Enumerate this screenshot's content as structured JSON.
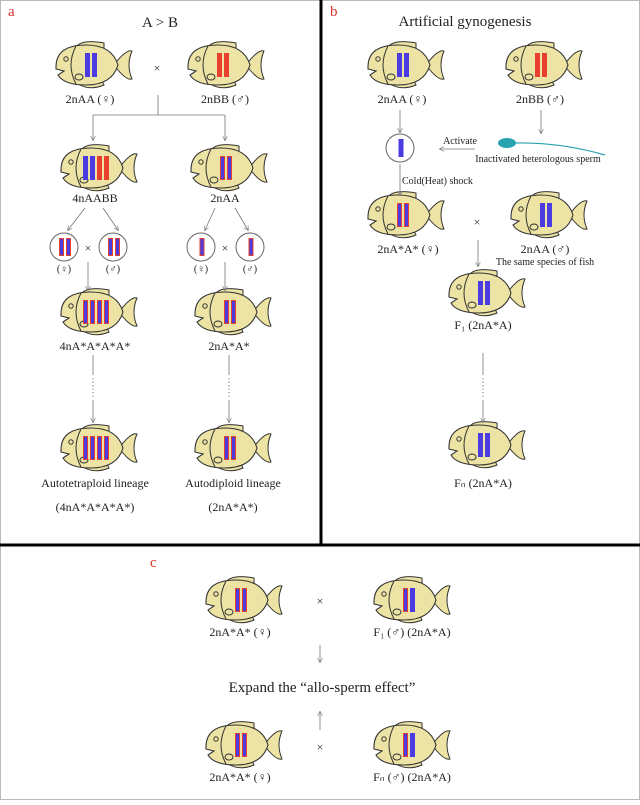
{
  "colors": {
    "chromosome_a": "#4a3ce0",
    "chromosome_b": "#e8402c",
    "fish_body": "#ece3a4",
    "panel_letter": "#e0302a"
  },
  "panel_a": {
    "letter": "a",
    "title": "A > B",
    "parent_female": "2nAA (♀)",
    "parent_male": "2nBB (♂)",
    "cross": "×",
    "tetraploid": "4nAABB",
    "diploid": "2nAA",
    "gamete_female": "(♀)",
    "gamete_male": "(♂)",
    "tetraploid_f": "4nA*A*A*A*",
    "diploid_f": "2nA*A*",
    "lineage_tetra": "Autotetraploid lineage",
    "lineage_tetra_formula": "(4nA*A*A*A*)",
    "lineage_di": "Autodiploid lineage",
    "lineage_di_formula": "(2nA*A*)"
  },
  "panel_b": {
    "letter": "b",
    "title": "Artificial gynogenesis",
    "parent_female": "2nAA (♀)",
    "parent_male": "2nBB (♂)",
    "activate": "Activate",
    "sperm": "Inactivated heterologous sperm",
    "shock": "Cold(Heat) shock",
    "gyno_female": "2nA*A* (♀)",
    "cross": "×",
    "same_male": "2nAA (♂)",
    "same_species": "The same species of fish",
    "f1": "F₁ (2nA*A)",
    "fn": "Fₙ (2nA*A)"
  },
  "panel_c": {
    "letter": "c",
    "female_top": "2nA*A* (♀)",
    "male_top": "F₁ (♂) (2nA*A)",
    "cross": "×",
    "center": "Expand the “allo-sperm effect”",
    "female_bottom": "2nA*A* (♀)",
    "male_bottom": "Fₙ (♂) (2nA*A)"
  }
}
